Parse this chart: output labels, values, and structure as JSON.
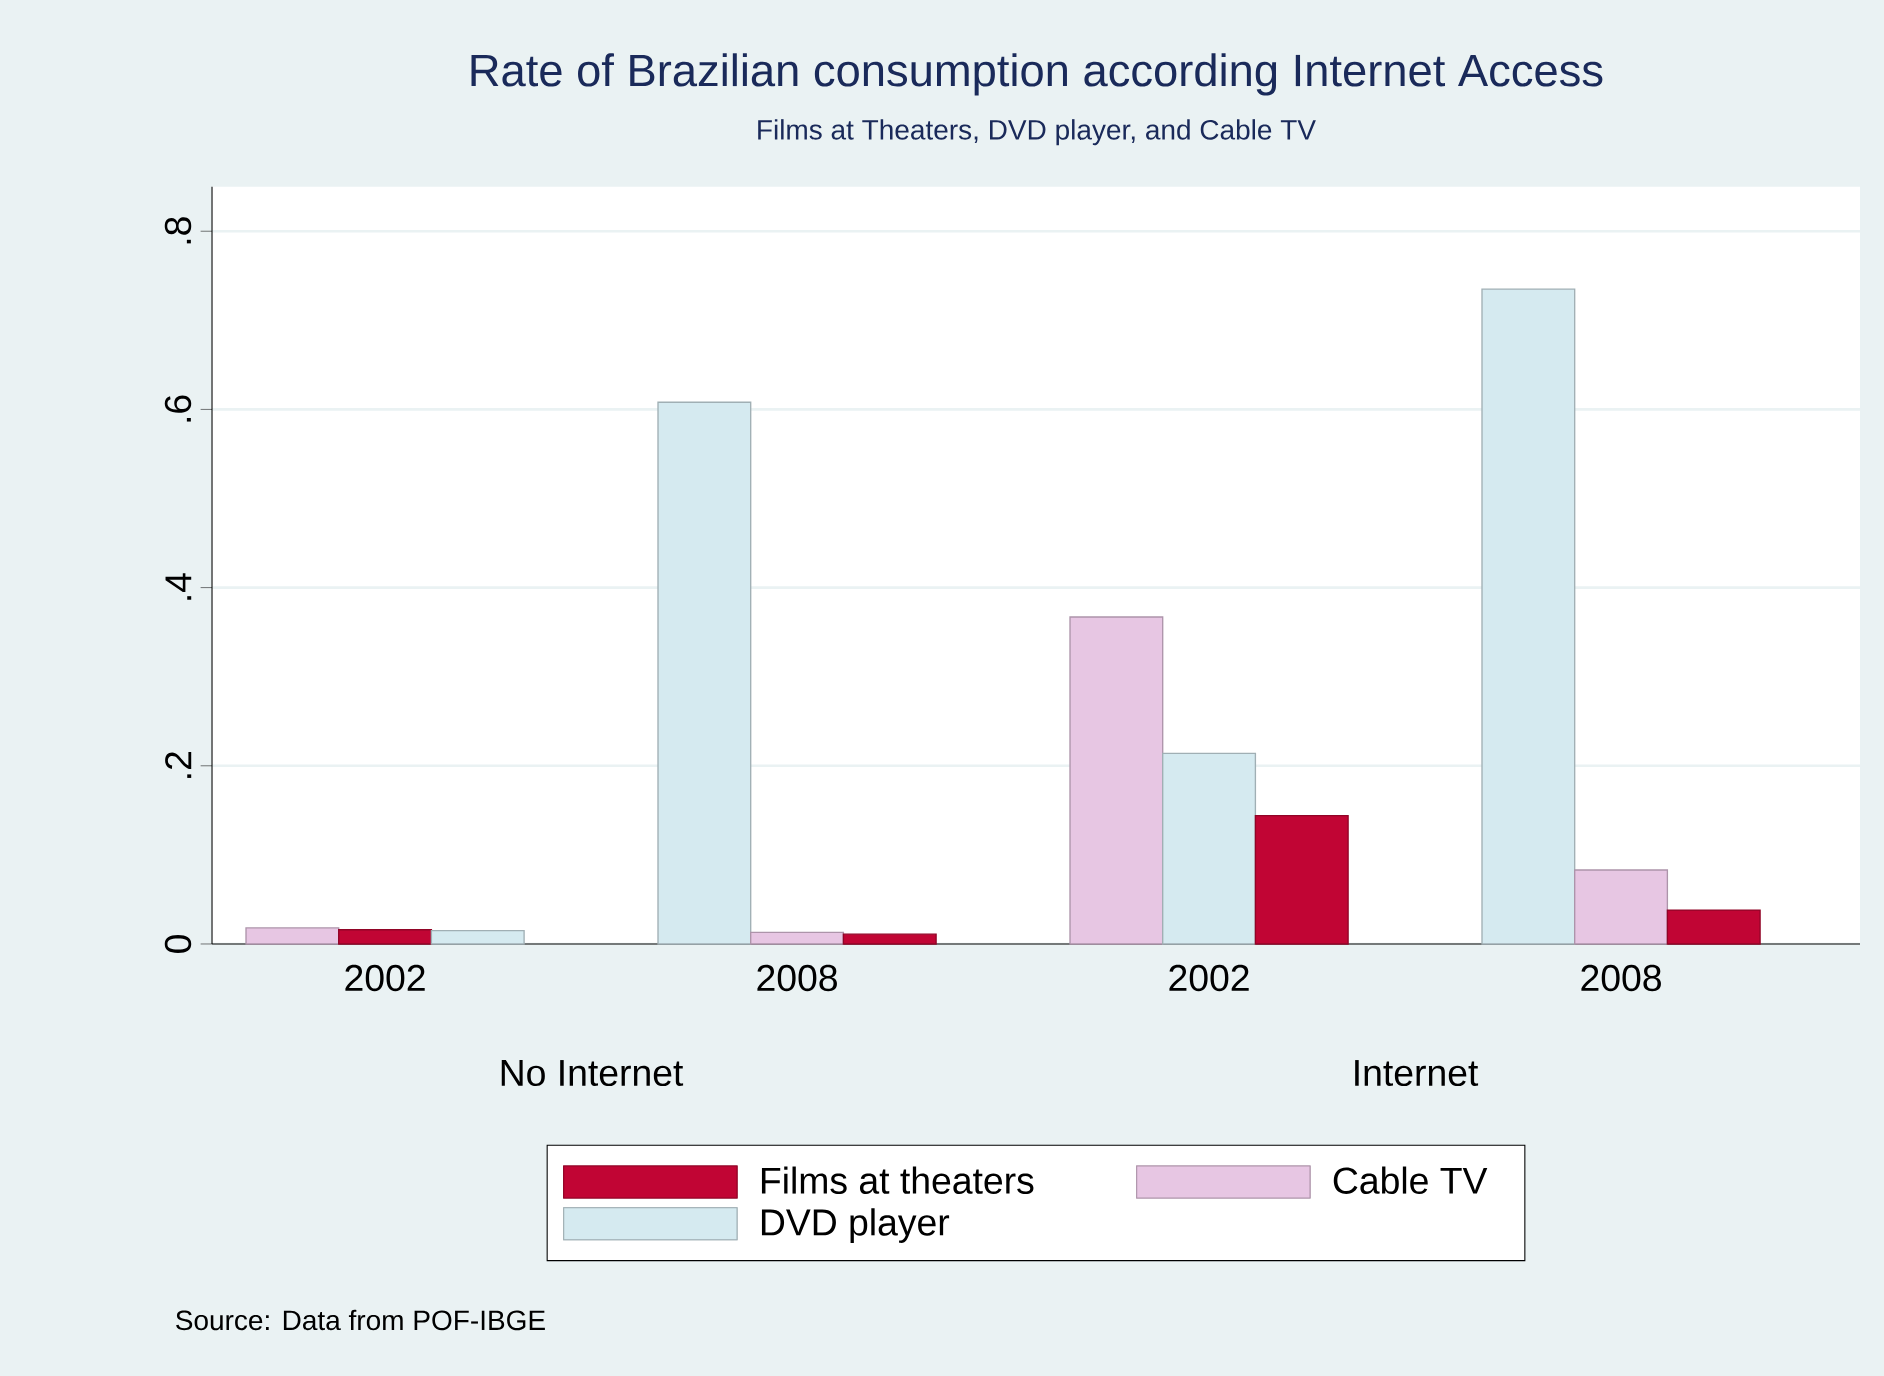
{
  "chart_data": {
    "type": "bar",
    "title": "Rate of Brazilian consumption according Internet Access",
    "subtitle": "Films at Theaters, DVD player, and Cable TV",
    "categories": [
      "2002",
      "2008",
      "2002",
      "2008"
    ],
    "series": [
      {
        "name": "Films at theaters",
        "color": "#c10534",
        "values": [
          0.016,
          0.011,
          0.144,
          0.038
        ]
      },
      {
        "name": "Cable TV",
        "color": "#e7c6e3",
        "values": [
          0.018,
          0.013,
          0.367,
          0.083
        ]
      },
      {
        "name": "DVD player",
        "color": "#d5eaf0",
        "values": [
          0.015,
          0.608,
          0.214,
          0.735
        ]
      }
    ],
    "ylim": [
      0,
      0.85
    ],
    "yticks": [
      {
        "value": 0,
        "label": "0"
      },
      {
        "value": 0.2,
        "label": ".2"
      },
      {
        "value": 0.4,
        "label": ".4"
      },
      {
        "value": 0.6,
        "label": ".6"
      },
      {
        "value": 0.8,
        "label": ".8"
      }
    ],
    "grid": "y",
    "legend": "bottom",
    "annotations": [
      "No Internet",
      "Internet",
      "Source: Data from POF-IBGE"
    ]
  }
}
